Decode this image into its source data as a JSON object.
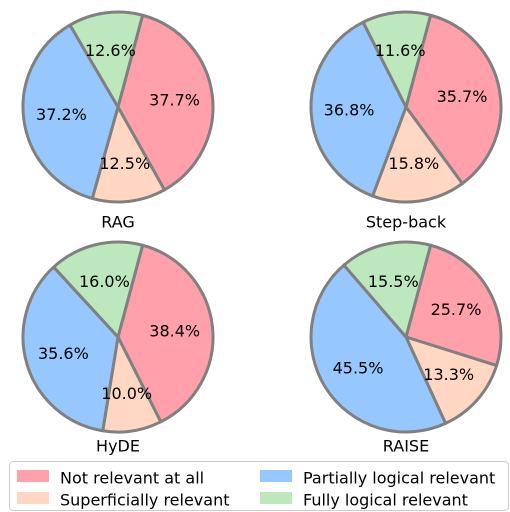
{
  "legend": {
    "placement": "bottom",
    "columns": 2,
    "items": [
      {
        "label": "Not relevant at all",
        "color": "#ffa0aa"
      },
      {
        "label": "Partially logical relevant",
        "color": "#96c8ff"
      },
      {
        "label": "Superficially relevant",
        "color": "#ffd7c3"
      },
      {
        "label": "Fully logical relevant",
        "color": "#bde8be"
      }
    ]
  },
  "chart_data": [
    {
      "type": "pie",
      "title": "RAG",
      "slices": [
        {
          "label": "Not relevant at all",
          "value": 37.7,
          "text": "37.7%",
          "color": "#ffa0aa"
        },
        {
          "label": "Superficially relevant",
          "value": 12.5,
          "text": "12.5%",
          "color": "#ffd7c3"
        },
        {
          "label": "Partially logical relevant",
          "value": 37.2,
          "text": "37.2%",
          "color": "#96c8ff"
        },
        {
          "label": "Fully logical relevant",
          "value": 12.6,
          "text": "12.6%",
          "color": "#bde8be"
        }
      ]
    },
    {
      "type": "pie",
      "title": "Step-back",
      "slices": [
        {
          "label": "Not relevant at all",
          "value": 35.7,
          "text": "35.7%",
          "color": "#ffa0aa"
        },
        {
          "label": "Superficially relevant",
          "value": 15.8,
          "text": "15.8%",
          "color": "#ffd7c3"
        },
        {
          "label": "Partially logical relevant",
          "value": 36.8,
          "text": "36.8%",
          "color": "#96c8ff"
        },
        {
          "label": "Fully logical relevant",
          "value": 11.6,
          "text": "11.6%",
          "color": "#bde8be"
        }
      ]
    },
    {
      "type": "pie",
      "title": "HyDE",
      "slices": [
        {
          "label": "Not relevant at all",
          "value": 38.4,
          "text": "38.4%",
          "color": "#ffa0aa"
        },
        {
          "label": "Superficially relevant",
          "value": 10.0,
          "text": "10.0%",
          "color": "#ffd7c3"
        },
        {
          "label": "Partially logical relevant",
          "value": 35.6,
          "text": "35.6%",
          "color": "#96c8ff"
        },
        {
          "label": "Fully logical relevant",
          "value": 16.0,
          "text": "16.0%",
          "color": "#bde8be"
        }
      ]
    },
    {
      "type": "pie",
      "title": "RAISE",
      "slices": [
        {
          "label": "Not relevant at all",
          "value": 25.7,
          "text": "25.7%",
          "color": "#ffa0aa"
        },
        {
          "label": "Superficially relevant",
          "value": 13.3,
          "text": "13.3%",
          "color": "#ffd7c3"
        },
        {
          "label": "Partially logical relevant",
          "value": 45.5,
          "text": "45.5%",
          "color": "#96c8ff"
        },
        {
          "label": "Fully logical relevant",
          "value": 15.5,
          "text": "15.5%",
          "color": "#bde8be"
        }
      ]
    }
  ]
}
